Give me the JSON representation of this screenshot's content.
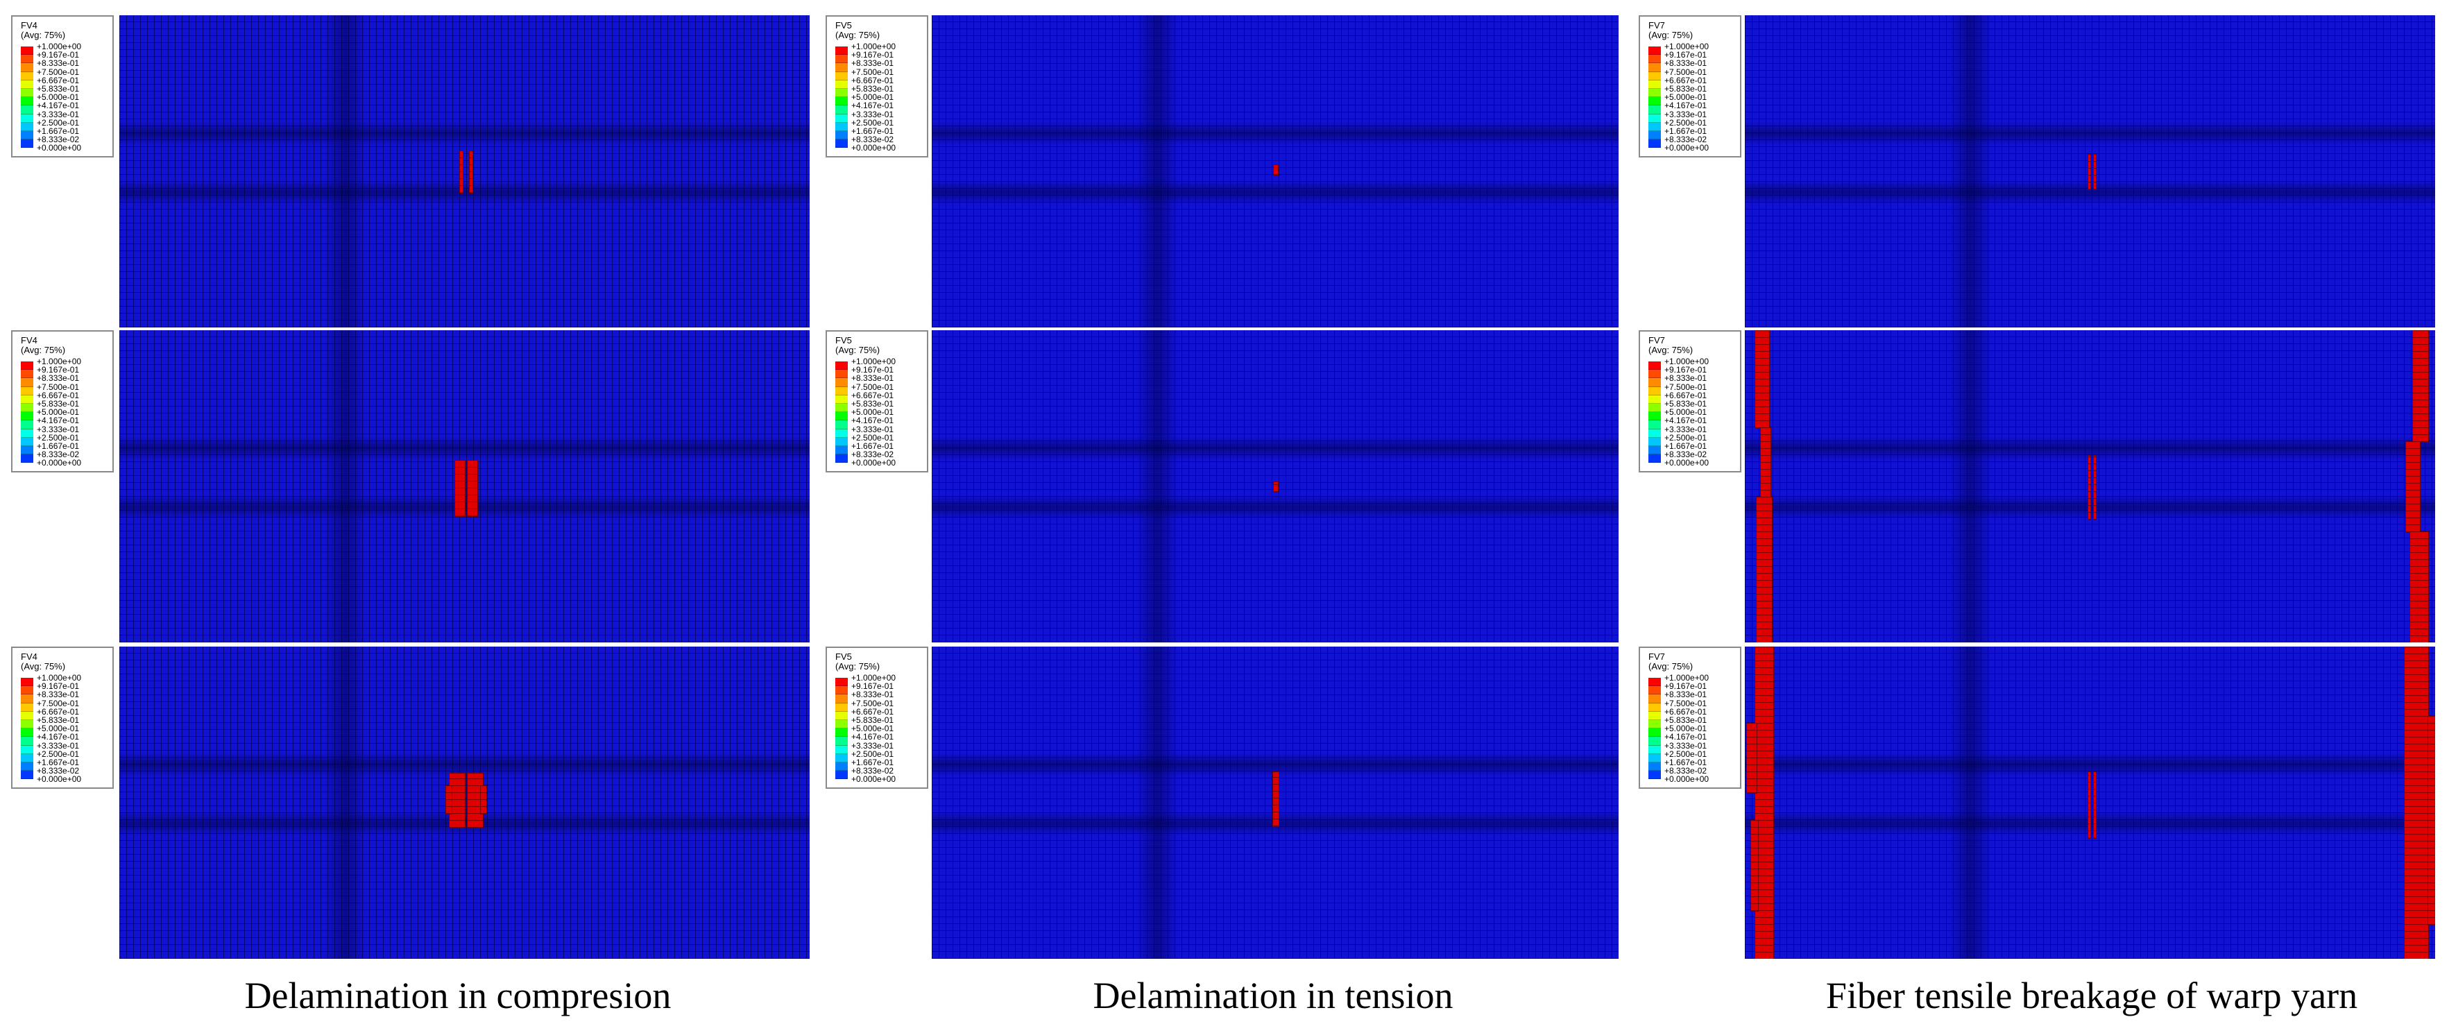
{
  "columns": [
    {
      "variable": "FV4",
      "caption": "Delamination in compresion"
    },
    {
      "variable": "FV5",
      "caption": "Delamination in tension"
    },
    {
      "variable": "FV7",
      "caption": "Fiber tensile breakage of warp yarn"
    }
  ],
  "legend": {
    "avg": "(Avg: 75%)",
    "values": [
      "+1.000e+00",
      "+9.167e-01",
      "+8.333e-01",
      "+7.500e-01",
      "+6.667e-01",
      "+5.833e-01",
      "+5.000e-01",
      "+4.167e-01",
      "+3.333e-01",
      "+2.500e-01",
      "+1.667e-01",
      "+8.333e-02",
      "+0.000e+00"
    ],
    "colors": [
      "#ff0000",
      "#ff4a00",
      "#ff8c00",
      "#ffc800",
      "#e6ff00",
      "#8cff00",
      "#00ff00",
      "#00ff8c",
      "#00ffe6",
      "#00c8ff",
      "#0080ff",
      "#0038ff",
      "#0000d0"
    ]
  },
  "colors": {
    "mesh_background": "#1212d2",
    "damaged_element": "#e00000",
    "page_background": "#ffffff"
  }
}
